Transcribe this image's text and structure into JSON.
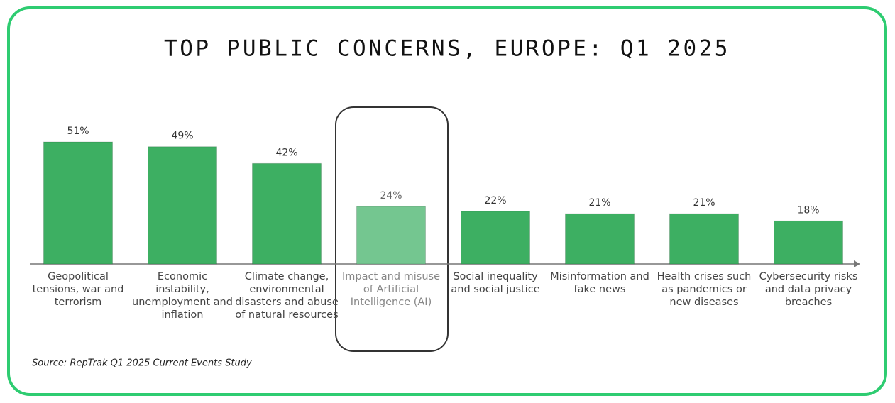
{
  "chart_data": {
    "type": "bar",
    "title": "TOP PUBLIC CONCERNS, EUROPE: Q1 2025",
    "categories": [
      "Geopolitical tensions, war and terrorism",
      "Economic instability, unemployment and inflation",
      "Climate change, environmental disasters and abuse of natural resources",
      "Impact and misuse of Artificial Intelligence (AI)",
      "Social inequality and social justice",
      "Misinformation and fake news",
      "Health crises such as pandemics or new diseases",
      "Cybersecurity risks and data privacy breaches"
    ],
    "values": [
      51,
      49,
      42,
      24,
      22,
      21,
      21,
      18
    ],
    "value_labels": [
      "51%",
      "49%",
      "42%",
      "24%",
      "22%",
      "21%",
      "21%",
      "18%"
    ],
    "colors": [
      "#3daf62",
      "#3daf62",
      "#3daf62",
      "#74c690",
      "#3daf62",
      "#3daf62",
      "#3daf62",
      "#3daf62"
    ],
    "source": "Source: RepTrak Q1 2025 Current Events Study"
  }
}
